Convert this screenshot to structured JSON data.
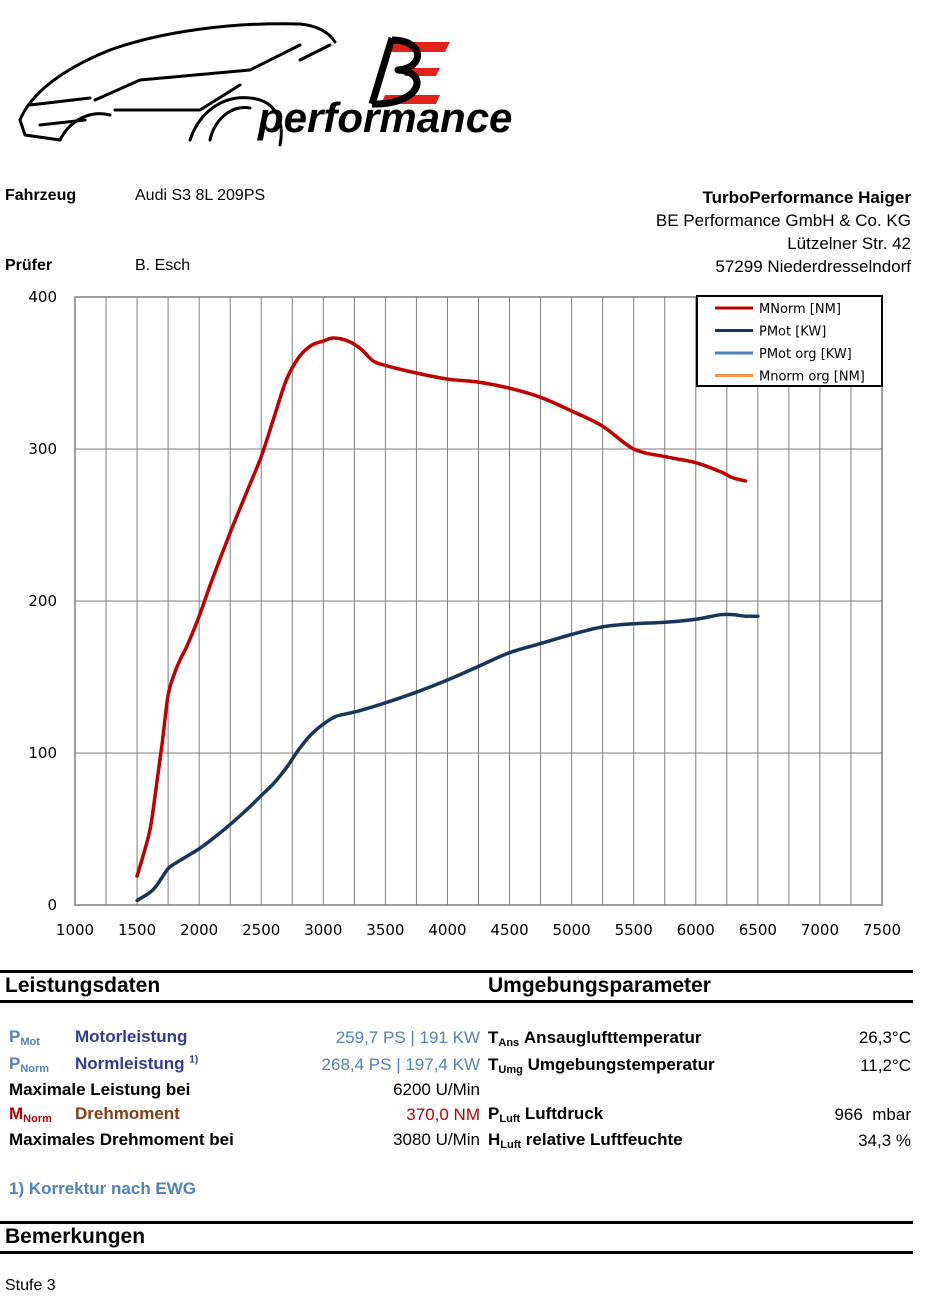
{
  "brand": {
    "logo_mark": "BE",
    "logo_text": "performance"
  },
  "header": {
    "fahrzeug_label": "Fahrzeug",
    "fahrzeug_value": "Audi S3 8L 209PS",
    "pruefer_label": "Prüfer",
    "pruefer_value": "B. Esch",
    "company_name": "TurboPerformance Haiger",
    "company_line2": "BE Performance GmbH & Co. KG",
    "company_line3": "Lützelner Str. 42",
    "company_line4": "57299 Niederdresselndorf"
  },
  "chart_data": {
    "type": "line",
    "xlim": [
      1000,
      7500
    ],
    "ylim": [
      0,
      400
    ],
    "x_ticks": [
      1000,
      1500,
      2000,
      2500,
      3000,
      3500,
      4000,
      4500,
      5000,
      5500,
      6000,
      6500,
      7000,
      7500
    ],
    "y_ticks": [
      0,
      100,
      200,
      300,
      400
    ],
    "grid": true,
    "legend_position": "top-right",
    "series": [
      {
        "name": "MNorm [NM]",
        "color": "#c00000",
        "points": [
          [
            1500,
            19
          ],
          [
            1600,
            48
          ],
          [
            1650,
            75
          ],
          [
            1700,
            105
          ],
          [
            1750,
            138
          ],
          [
            1800,
            152
          ],
          [
            1850,
            162
          ],
          [
            1900,
            170
          ],
          [
            2000,
            190
          ],
          [
            2100,
            213
          ],
          [
            2250,
            245
          ],
          [
            2400,
            275
          ],
          [
            2500,
            295
          ],
          [
            2600,
            320
          ],
          [
            2700,
            345
          ],
          [
            2800,
            360
          ],
          [
            2900,
            368
          ],
          [
            3000,
            371
          ],
          [
            3080,
            373
          ],
          [
            3200,
            371
          ],
          [
            3300,
            366
          ],
          [
            3400,
            358
          ],
          [
            3500,
            355
          ],
          [
            3750,
            350
          ],
          [
            4000,
            346
          ],
          [
            4250,
            344
          ],
          [
            4500,
            340
          ],
          [
            4750,
            334
          ],
          [
            5000,
            325
          ],
          [
            5250,
            315
          ],
          [
            5500,
            300
          ],
          [
            5750,
            295
          ],
          [
            6000,
            291
          ],
          [
            6200,
            285
          ],
          [
            6300,
            281
          ],
          [
            6400,
            279
          ]
        ]
      },
      {
        "name": "PMot [KW]",
        "color": "#17365d",
        "points": [
          [
            1500,
            3
          ],
          [
            1600,
            8
          ],
          [
            1650,
            12
          ],
          [
            1700,
            18
          ],
          [
            1750,
            24
          ],
          [
            1800,
            27
          ],
          [
            1900,
            32
          ],
          [
            2000,
            37
          ],
          [
            2100,
            43
          ],
          [
            2250,
            53
          ],
          [
            2400,
            64
          ],
          [
            2500,
            72
          ],
          [
            2600,
            80
          ],
          [
            2700,
            90
          ],
          [
            2800,
            102
          ],
          [
            2900,
            112
          ],
          [
            3000,
            119
          ],
          [
            3100,
            124
          ],
          [
            3200,
            126
          ],
          [
            3300,
            128
          ],
          [
            3500,
            133
          ],
          [
            3750,
            140
          ],
          [
            4000,
            148
          ],
          [
            4250,
            157
          ],
          [
            4500,
            166
          ],
          [
            4750,
            172
          ],
          [
            5000,
            178
          ],
          [
            5250,
            183
          ],
          [
            5500,
            185
          ],
          [
            5750,
            186
          ],
          [
            6000,
            188
          ],
          [
            6200,
            191
          ],
          [
            6300,
            191
          ],
          [
            6400,
            190
          ],
          [
            6500,
            190
          ]
        ]
      },
      {
        "name": "PMot org [KW]",
        "color": "#4f81bd",
        "points": []
      },
      {
        "name": "Mnorm org [NM]",
        "color": "#f79646",
        "points": []
      }
    ]
  },
  "leistung": {
    "title": "Leistungsdaten",
    "pmot_sym": "P",
    "pmot_sub": "Mot",
    "pmot_label": "Motorleistung",
    "pmot_value": "259,7 PS | 191 KW",
    "pnorm_sym": "P",
    "pnorm_sub": "Norm",
    "pnorm_label": "Normleistung",
    "pnorm_sup": "1)",
    "pnorm_value": "268,4 PS | 197,4 KW",
    "maxl_label": "Maximale Leistung bei",
    "maxl_value": "6200 U/Min",
    "mnorm_sym": "M",
    "mnorm_sub": "Norm",
    "mnorm_label": "Drehmoment",
    "mnorm_value": "370,0 NM",
    "maxd_label": "Maximales Drehmoment bei",
    "maxd_value": "3080 U/Min",
    "footnote": "1) Korrektur nach EWG"
  },
  "umgebung": {
    "title": "Umgebungsparameter",
    "tans_sym": "T",
    "tans_sub": "Ans",
    "tans_label": "Ansauglufttemperatur",
    "tans_value": "26,3°C",
    "tumg_sym": "T",
    "tumg_sub": "Umg",
    "tumg_label": "Umgebungstemperatur",
    "tumg_value": "11,2°C",
    "pluft_sym": "P",
    "pluft_sub": "Luft",
    "pluft_label": "Luftdruck",
    "pluft_value": "966  mbar",
    "hluft_sym": "H",
    "hluft_sub": "Luft",
    "hluft_label": "relative Luftfeuchte",
    "hluft_value": "34,3 %"
  },
  "bemerkungen": {
    "title": "Bemerkungen",
    "text": "Stufe 3"
  }
}
